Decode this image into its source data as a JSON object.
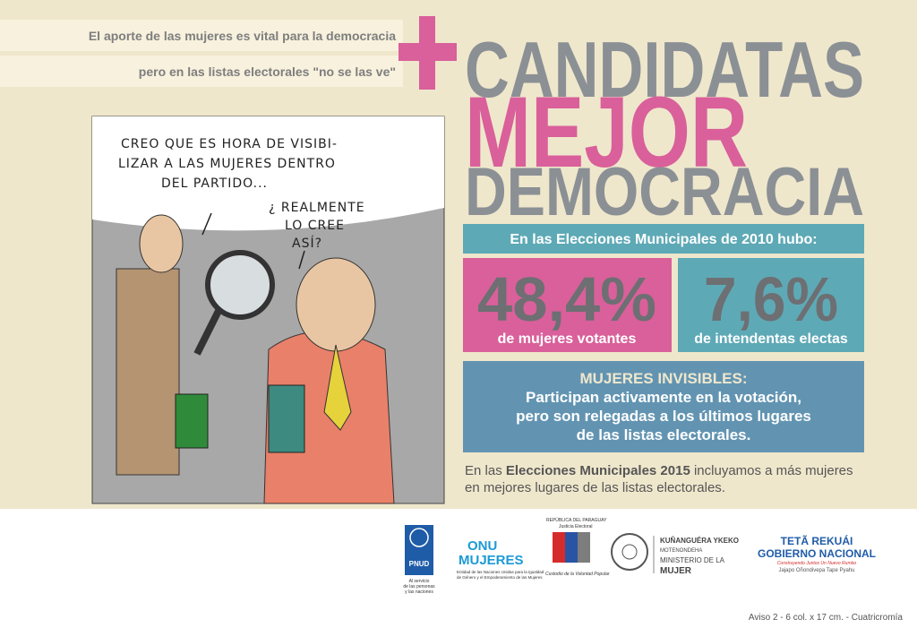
{
  "header": {
    "line1": "El aporte de las mujeres es vital para la democracia",
    "line2": "pero en las listas electorales \"no se las ve\""
  },
  "headline": {
    "line1": "CANDIDATAS",
    "line2": "MEJOR",
    "line3": "DEMOCRACIA"
  },
  "cartoon": {
    "speech1": [
      "CREO QUE ES HORA DE VISIBI-",
      "LIZAR A LAS MUJERES DENTRO",
      "DEL PARTIDO..."
    ],
    "speech2": [
      "¿ REALMENTE",
      "LO CREE",
      "ASÍ?"
    ]
  },
  "stats": {
    "heading": "En las Elecciones Municipales de 2010 hubo:",
    "items": [
      {
        "value": "48,4%",
        "label": "de mujeres votantes"
      },
      {
        "value": "7,6%",
        "label": "de intendentas electas"
      }
    ]
  },
  "callout": {
    "title": "MUJERES INVISIBLES:",
    "lines": [
      "Participan activamente en la votación,",
      "pero son relegadas a los últimos lugares",
      "de las listas electorales."
    ]
  },
  "closing": {
    "line1": [
      "En las ",
      "Elecciones Municipales 2015",
      " incluyamos a más mujeres"
    ],
    "line2": "en mejores lugares de las listas electorales."
  },
  "logos": {
    "pnud": {
      "name": "PNUD",
      "tagline": [
        "Al servicio",
        "de las personas",
        "y las naciones"
      ]
    },
    "onu": {
      "name": [
        "ONU",
        "MUJERES"
      ],
      "tagline": [
        "Entidad de las Naciones Unidas para la Igualdad",
        "de Género y el Empoderamiento de las Mujeres"
      ]
    },
    "tsje": {
      "top": "REPÚBLICA DEL PARAGUAY",
      "name": "Justicia Electoral",
      "tagline": "Custodio de la Voluntad Popular"
    },
    "ministerio": {
      "lines": [
        "KUÑANGUÉRA YKEKO",
        "MOTENONDEHA",
        "MINISTERIO DE LA",
        "MUJER"
      ]
    },
    "gobierno": {
      "lines": [
        "TETÃ REKUÁI",
        "GOBIERNO NACIONAL",
        "Construyendo Juntos Un Nuevo Rumbo",
        "Jajapo Oñondivepa Tape Pyahu"
      ]
    }
  },
  "footer": "Aviso 2 - 6 col. x 17 cm. - Cuatricromía"
}
